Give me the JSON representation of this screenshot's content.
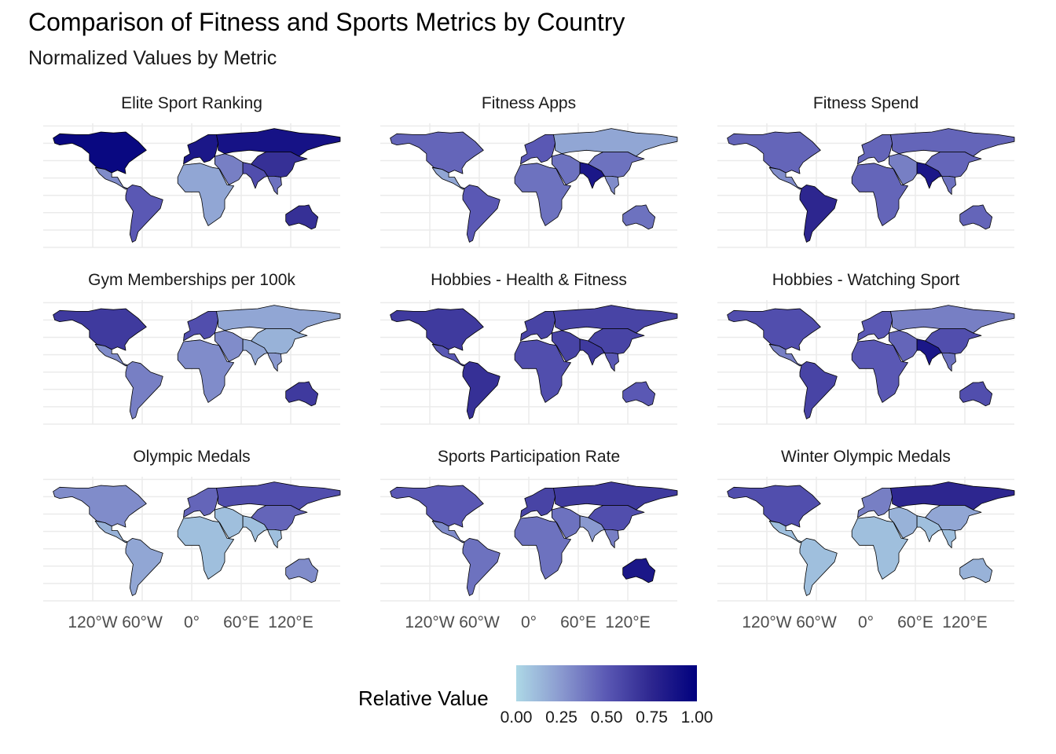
{
  "title": "Comparison of Fitness and Sports Metrics by Country",
  "subtitle": "Normalized Values by Metric",
  "chart_data": {
    "type": "choropleth",
    "panel_layout": "3x3 facets",
    "grid": true,
    "x_tick_labels": [
      "120°W",
      "60°W",
      "0°",
      "60°E",
      "120°E"
    ],
    "x_tick_values": [
      -120,
      -60,
      0,
      60,
      120
    ],
    "x_tick_panels": [
      "Olympic Medals",
      "Sports Participation Rate",
      "Winter Olympic Medals"
    ],
    "color_scale": {
      "low": "#add8e6",
      "high": "#00007e",
      "range": [
        0,
        1
      ]
    },
    "regions": [
      "North America",
      "Central America",
      "South America",
      "Europe",
      "Russia",
      "Middle East",
      "Africa",
      "South Asia",
      "China & East Asia",
      "Southeast Asia",
      "Australia"
    ],
    "facets": [
      {
        "title": "Elite Sport Ranking",
        "values": {
          "North America": 0.95,
          "Central America": 0.3,
          "South America": 0.5,
          "Europe": 0.85,
          "Russia": 0.88,
          "Middle East": 0.35,
          "Africa": 0.2,
          "South Asia": 0.55,
          "China & East Asia": 0.7,
          "Southeast Asia": 0.4,
          "Australia": 0.7
        }
      },
      {
        "title": "Fitness Apps",
        "values": {
          "North America": 0.45,
          "Central America": 0.2,
          "South America": 0.5,
          "Europe": 0.5,
          "Russia": 0.2,
          "Middle East": 0.4,
          "Africa": 0.4,
          "South Asia": 0.85,
          "China & East Asia": 0.4,
          "Southeast Asia": 0.3,
          "Australia": 0.4
        }
      },
      {
        "title": "Fitness Spend",
        "values": {
          "North America": 0.45,
          "Central America": 0.3,
          "South America": 0.75,
          "Europe": 0.45,
          "Russia": 0.45,
          "Middle East": 0.35,
          "Africa": 0.45,
          "South Asia": 0.85,
          "China & East Asia": 0.45,
          "Southeast Asia": 0.4,
          "Australia": 0.45
        }
      },
      {
        "title": "Gym Memberships per 100k",
        "values": {
          "North America": 0.65,
          "Central America": 0.3,
          "South America": 0.35,
          "Europe": 0.55,
          "Russia": 0.2,
          "Middle East": 0.3,
          "Africa": 0.3,
          "South Asia": 0.2,
          "China & East Asia": 0.15,
          "Southeast Asia": 0.25,
          "Australia": 0.65
        }
      },
      {
        "title": "Hobbies - Health & Fitness",
        "values": {
          "North America": 0.65,
          "Central America": 0.5,
          "South America": 0.7,
          "Europe": 0.6,
          "Russia": 0.6,
          "Middle East": 0.6,
          "Africa": 0.55,
          "South Asia": 0.65,
          "China & East Asia": 0.6,
          "Southeast Asia": 0.5,
          "Australia": 0.5
        }
      },
      {
        "title": "Hobbies - Watching Sport",
        "values": {
          "North America": 0.55,
          "Central America": 0.35,
          "South America": 0.6,
          "Europe": 0.5,
          "Russia": 0.35,
          "Middle East": 0.45,
          "Africa": 0.5,
          "South Asia": 0.85,
          "China & East Asia": 0.55,
          "Southeast Asia": 0.4,
          "Australia": 0.55
        }
      },
      {
        "title": "Olympic Medals",
        "values": {
          "North America": 0.3,
          "Central America": 0.15,
          "South America": 0.2,
          "Europe": 0.45,
          "Russia": 0.55,
          "Middle East": 0.1,
          "Africa": 0.1,
          "South Asia": 0.1,
          "China & East Asia": 0.45,
          "Southeast Asia": 0.1,
          "Australia": 0.3
        }
      },
      {
        "title": "Sports Participation Rate",
        "values": {
          "North America": 0.5,
          "Central America": 0.3,
          "South America": 0.4,
          "Europe": 0.6,
          "Russia": 0.65,
          "Middle East": 0.4,
          "Africa": 0.4,
          "South Asia": 0.25,
          "China & East Asia": 0.55,
          "Southeast Asia": 0.35,
          "Australia": 0.85
        }
      },
      {
        "title": "Winter Olympic Medals",
        "values": {
          "North America": 0.55,
          "Central America": 0.1,
          "South America": 0.1,
          "Europe": 0.35,
          "Russia": 0.75,
          "Middle East": 0.15,
          "Africa": 0.1,
          "South Asia": 0.1,
          "China & East Asia": 0.2,
          "Southeast Asia": 0.1,
          "Australia": 0.15
        }
      }
    ]
  },
  "legend": {
    "title": "Relative Value",
    "labels": [
      "0.00",
      "0.25",
      "0.50",
      "0.75",
      "1.00"
    ]
  }
}
